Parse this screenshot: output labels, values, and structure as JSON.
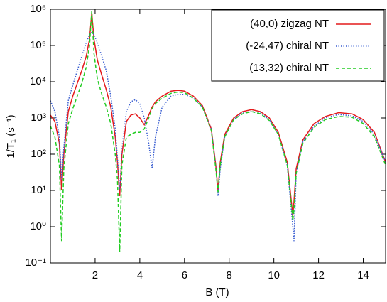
{
  "chart_data": {
    "type": "line",
    "xlabel": "B (T)",
    "ylabel": "1/T₁ (s⁻¹)",
    "xlim": [
      0,
      15
    ],
    "xticks": [
      2,
      4,
      6,
      8,
      10,
      12,
      14
    ],
    "ylim": [
      0.1,
      1000000
    ],
    "yscale": "log",
    "yticks": [
      {
        "value": 0.1,
        "label": "10⁻¹"
      },
      {
        "value": 1,
        "label": "10⁰"
      },
      {
        "value": 10,
        "label": "10¹"
      },
      {
        "value": 100,
        "label": "10²"
      },
      {
        "value": 1000,
        "label": "10³"
      },
      {
        "value": 10000,
        "label": "10⁴"
      },
      {
        "value": 100000,
        "label": "10⁵"
      },
      {
        "value": 1000000,
        "label": "10⁶"
      }
    ],
    "legend": "top-right",
    "x": [
      0,
      0.2,
      0.4,
      0.5,
      0.6,
      0.8,
      1.0,
      1.2,
      1.4,
      1.6,
      1.75,
      1.85,
      1.95,
      2.1,
      2.3,
      2.5,
      2.7,
      2.9,
      3.0,
      3.1,
      3.2,
      3.4,
      3.6,
      3.8,
      4.0,
      4.2,
      4.4,
      4.55,
      4.7,
      5.0,
      5.4,
      5.7,
      6.0,
      6.4,
      6.8,
      7.2,
      7.4,
      7.5,
      7.6,
      7.8,
      8.2,
      8.6,
      9.0,
      9.4,
      9.8,
      10.2,
      10.6,
      10.85,
      10.9,
      11.0,
      11.3,
      11.8,
      12.3,
      12.9,
      13.5,
      14.0,
      14.5,
      15.0
    ],
    "series": [
      {
        "name": "(40,0) zigzag NT",
        "color": "#e41a1c",
        "dash": "solid",
        "values": [
          1200,
          800,
          200,
          10,
          100,
          1500,
          4000,
          9000,
          20000,
          50000,
          150000,
          800000,
          150000,
          40000,
          15000,
          6000,
          2000,
          300,
          60,
          7,
          100,
          800,
          1200,
          1300,
          1000,
          650,
          1200,
          2000,
          2800,
          4000,
          5500,
          5800,
          5500,
          4000,
          2200,
          500,
          50,
          10,
          60,
          350,
          1000,
          1500,
          1700,
          1500,
          1000,
          400,
          60,
          2,
          5,
          40,
          250,
          700,
          1100,
          1400,
          1300,
          900,
          400,
          60
        ]
      },
      {
        "name": "(-24,47) chiral NT",
        "color": "#3b5fd1",
        "dash": "dotted",
        "values": [
          3000,
          1500,
          300,
          20,
          150,
          3000,
          8000,
          20000,
          50000,
          120000,
          200000,
          230000,
          200000,
          120000,
          50000,
          20000,
          4000,
          500,
          80,
          10,
          150,
          1500,
          2800,
          3200,
          2500,
          1000,
          200,
          40,
          300,
          2000,
          4000,
          4500,
          4500,
          3500,
          2000,
          500,
          50,
          7,
          40,
          300,
          900,
          1400,
          1500,
          1400,
          900,
          350,
          50,
          1,
          0.4,
          30,
          220,
          600,
          1000,
          1250,
          1150,
          800,
          350,
          60
        ]
      },
      {
        "name": "(13,32) chiral NT",
        "color": "#22cc22",
        "dash": "dashed",
        "values": [
          600,
          300,
          50,
          0.4,
          40,
          700,
          1800,
          4000,
          9000,
          25000,
          100000,
          900000,
          60000,
          12000,
          4500,
          2000,
          700,
          100,
          20,
          0.2,
          50,
          300,
          350,
          400,
          400,
          500,
          1000,
          1800,
          2500,
          3500,
          4800,
          5200,
          5000,
          3500,
          2000,
          450,
          40,
          9,
          50,
          300,
          900,
          1300,
          1500,
          1300,
          850,
          350,
          50,
          1.5,
          3,
          30,
          200,
          550,
          900,
          1100,
          1050,
          700,
          300,
          50
        ]
      }
    ]
  }
}
